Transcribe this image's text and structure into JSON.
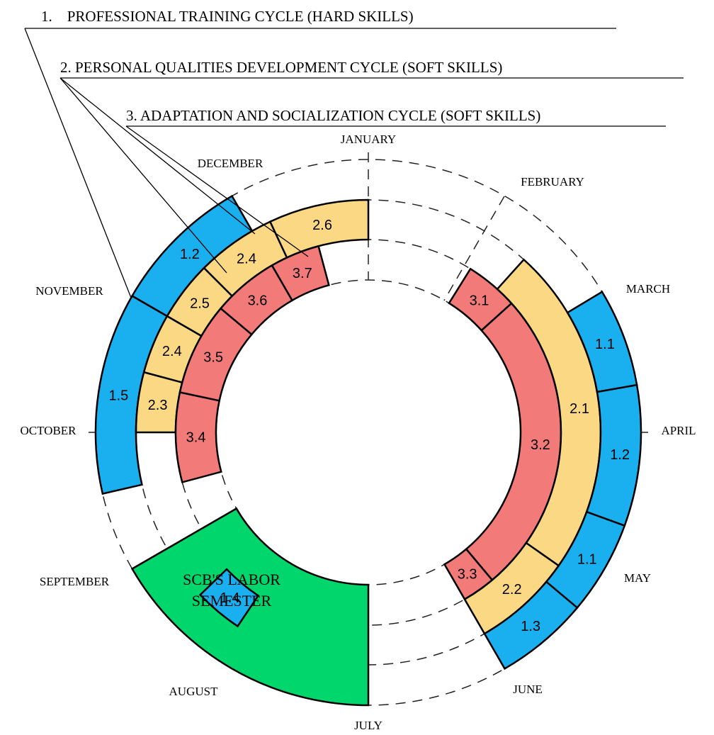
{
  "cycles": [
    "1.    PROFESSIONAL TRAINING CYCLE (HARD SKILLS)",
    "2. PERSONAL QUALITIES DEVELOPMENT CYCLE (SOFT SKILLS)",
    "3. ADAPTATION AND SOCIALIZATION CYCLE (SOFT SKILLS)"
  ],
  "months": [
    "JANUARY",
    "FEBRUARY",
    "MARCH",
    "APRIL",
    "MAY",
    "JUNE",
    "JULY",
    "AUGUST",
    "SEPTEMBER",
    "OCTOBER",
    "NOVEMBER",
    "DECEMBER"
  ],
  "segments": [
    "1.5",
    "1.2",
    "2.3",
    "2.4",
    "2.5",
    "2.4",
    "2.6",
    "3.4",
    "3.5",
    "3.6",
    "3.7",
    "3.1",
    "3.2",
    "3.3",
    "2.1",
    "2.2",
    "1.1",
    "1.2",
    "1.1",
    "1.3",
    "1.4"
  ],
  "center_label": [
    "SCB'S LABOR",
    "SEMESTER"
  ]
}
